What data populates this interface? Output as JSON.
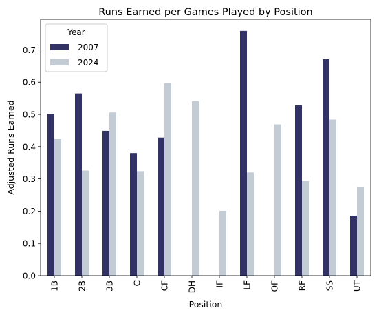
{
  "chart_data": {
    "type": "bar",
    "title": "Runs Earned per Games Played by Position",
    "xlabel": "Position",
    "ylabel": "Adjusted Runs Earned",
    "categories": [
      "1B",
      "2B",
      "3B",
      "C",
      "CF",
      "DH",
      "IF",
      "LF",
      "OF",
      "RF",
      "SS",
      "UT"
    ],
    "series": [
      {
        "name": "2007",
        "color": "#323264",
        "values": [
          0.502,
          0.565,
          0.449,
          0.38,
          0.428,
          null,
          null,
          0.759,
          null,
          0.528,
          0.671,
          0.186
        ]
      },
      {
        "name": "2024",
        "color": "#c3cbd5",
        "values": [
          0.425,
          0.326,
          0.506,
          0.324,
          0.597,
          0.541,
          0.201,
          0.32,
          0.469,
          0.294,
          0.484,
          0.274
        ]
      }
    ],
    "ylim": [
      0,
      0.795
    ],
    "yticks": [
      "0.0",
      "0.1",
      "0.2",
      "0.3",
      "0.4",
      "0.5",
      "0.6",
      "0.7"
    ],
    "legend": {
      "title": "Year",
      "position": "top-left"
    },
    "grid": false
  }
}
